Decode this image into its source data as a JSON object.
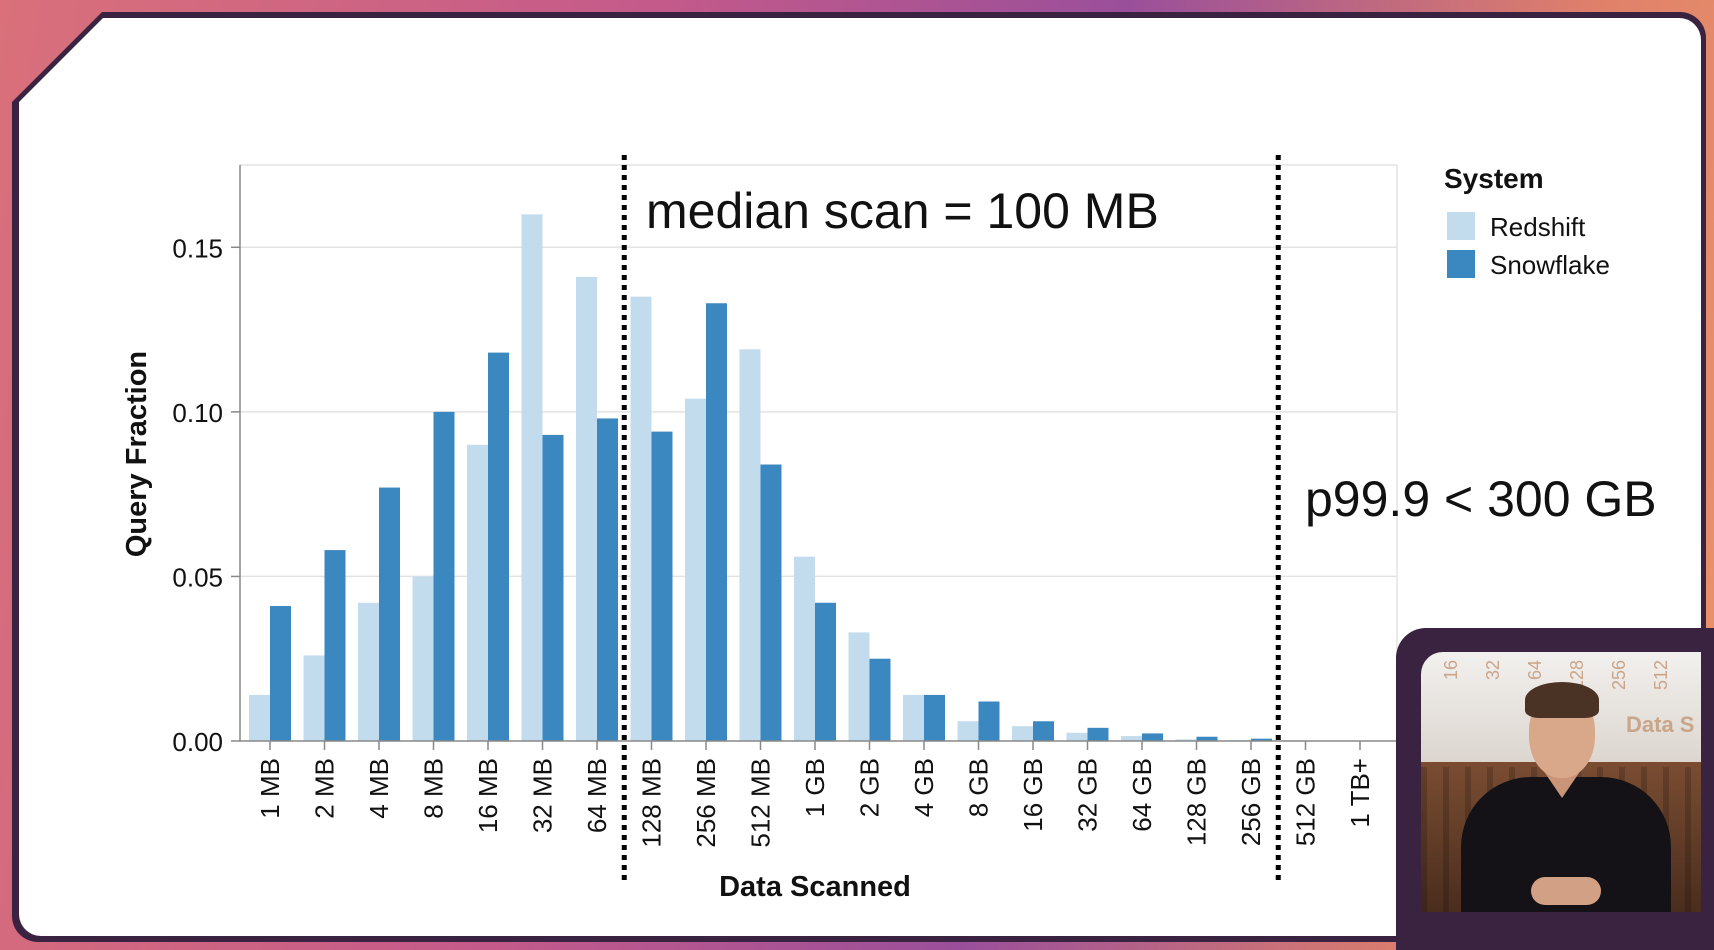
{
  "chart_data": {
    "type": "bar",
    "title": "",
    "xlabel": "Data Scanned",
    "ylabel": "Query Fraction",
    "ylim": [
      0,
      0.175
    ],
    "yticks": [
      0.0,
      0.05,
      0.1,
      0.15
    ],
    "ytick_labels": [
      "0.00",
      "0.05",
      "0.10",
      "0.15"
    ],
    "grid": true,
    "legend": {
      "title": "System",
      "position": "right"
    },
    "categories": [
      "1 MB",
      "2 MB",
      "4 MB",
      "8 MB",
      "16 MB",
      "32 MB",
      "64 MB",
      "128 MB",
      "256 MB",
      "512 MB",
      "1 GB",
      "2 GB",
      "4 GB",
      "8 GB",
      "16 GB",
      "32 GB",
      "64 GB",
      "128 GB",
      "256 GB",
      "512 GB",
      "1 TB+"
    ],
    "series": [
      {
        "name": "Redshift",
        "color": "#c3dced",
        "values": [
          0.014,
          0.026,
          0.042,
          0.05,
          0.09,
          0.16,
          0.141,
          0.135,
          0.104,
          0.119,
          0.056,
          0.033,
          0.014,
          0.006,
          0.0045,
          0.0025,
          0.0015,
          0.0005,
          0.0003,
          0.0002,
          0.0
        ]
      },
      {
        "name": "Snowflake",
        "color": "#3b87c0",
        "values": [
          0.041,
          0.058,
          0.077,
          0.1,
          0.118,
          0.093,
          0.098,
          0.094,
          0.133,
          0.084,
          0.042,
          0.025,
          0.014,
          0.012,
          0.006,
          0.004,
          0.0023,
          0.0013,
          0.0007,
          0.0,
          0.0
        ]
      }
    ],
    "annotations": [
      {
        "text": "median scan = 100 MB",
        "between": [
          "64 MB",
          "128 MB"
        ],
        "style": "dotted-vertical-line"
      },
      {
        "text": "p99.9 < 300 GB",
        "between": [
          "256 GB",
          "512 GB"
        ],
        "style": "dotted-vertical-line"
      }
    ]
  },
  "webcam": {
    "tick_labels": [
      "16",
      "32",
      "64",
      "128",
      "256",
      "512"
    ],
    "title_fragment": "Data S"
  }
}
